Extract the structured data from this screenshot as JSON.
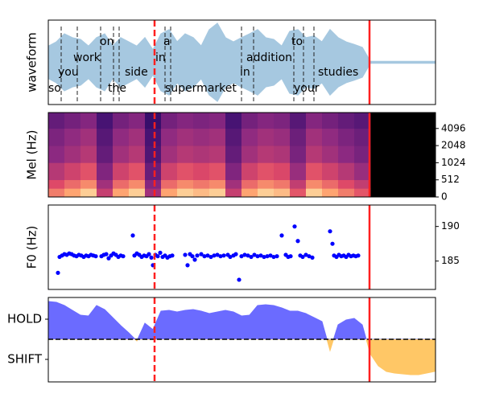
{
  "markers": [
    {
      "x": 1.32,
      "color": "#ff2020",
      "style": "dashed"
    },
    {
      "x": 3.99,
      "color": "#ff2020",
      "style": "solid"
    }
  ],
  "chart_data": [
    {
      "type": "waveform",
      "ylabel": "waveform",
      "xlim": [
        0,
        4.81
      ],
      "ylim": [
        -1,
        1
      ],
      "color": "#a6c8e0",
      "x": [
        0,
        0.1,
        0.2,
        0.3,
        0.4,
        0.5,
        0.6,
        0.7,
        0.8,
        0.9,
        1.0,
        1.1,
        1.2,
        1.3,
        1.4,
        1.5,
        1.6,
        1.7,
        1.8,
        1.9,
        2.0,
        2.1,
        2.2,
        2.3,
        2.4,
        2.5,
        2.6,
        2.7,
        2.8,
        2.9,
        3.0,
        3.1,
        3.2,
        3.3,
        3.4,
        3.5,
        3.6,
        3.7,
        3.8,
        3.9,
        4.0,
        4.1,
        4.2,
        4.3,
        4.4,
        4.5,
        4.6,
        4.7,
        4.8
      ],
      "values": [
        0.38,
        0.48,
        0.67,
        0.58,
        0.54,
        0.38,
        0.58,
        0.67,
        0.38,
        0.58,
        0.48,
        0.38,
        0.58,
        0.29,
        0.67,
        0.77,
        0.48,
        0.67,
        0.58,
        0.38,
        0.77,
        0.92,
        0.58,
        0.48,
        0.58,
        0.67,
        0.77,
        0.58,
        0.54,
        0.38,
        0.73,
        0.77,
        0.58,
        0.62,
        0.48,
        0.77,
        0.58,
        0.48,
        0.42,
        0.35,
        0.02,
        0.02,
        0.02,
        0.02,
        0.02,
        0.02,
        0.02,
        0.02,
        0.02
      ],
      "words": [
        {
          "text": "so",
          "start": 0.0
        },
        {
          "text": "you",
          "start": 0.12
        },
        {
          "text": "work",
          "start": 0.31
        },
        {
          "text": "on",
          "start": 0.64
        },
        {
          "text": "the",
          "start": 0.74
        },
        {
          "text": "side",
          "start": 0.95
        },
        {
          "text": "in",
          "start": 1.33
        },
        {
          "text": "a",
          "start": 1.43
        },
        {
          "text": "supermarket",
          "start": 1.45
        },
        {
          "text": "in",
          "start": 2.38
        },
        {
          "text": "addition",
          "start": 2.46
        },
        {
          "text": "to",
          "start": 3.02
        },
        {
          "text": "your",
          "start": 3.05
        },
        {
          "text": "studies",
          "start": 3.35
        }
      ],
      "boundaries": [
        0.16,
        0.36,
        0.65,
        0.81,
        0.88,
        1.45,
        1.52,
        2.4,
        2.55,
        3.05,
        3.17,
        3.3
      ]
    },
    {
      "type": "heatmap",
      "ylabel": "Mel (Hz)",
      "xlim": [
        0,
        4.81
      ],
      "ylim": [
        0,
        7800
      ],
      "yscale": "symlog",
      "linthresh": 1024,
      "yticks": [
        0,
        512,
        1024,
        2048,
        4096
      ],
      "background": "#000000",
      "colormap": [
        "#000004",
        "#3b0f70",
        "#8c2981",
        "#de4968",
        "#fe9f6d",
        "#fcfdbf"
      ],
      "xbins": [
        0,
        0.2,
        0.4,
        0.6,
        0.8,
        1.0,
        1.2,
        1.4,
        1.6,
        1.8,
        2.0,
        2.2,
        2.4,
        2.6,
        2.8,
        3.0,
        3.2,
        3.4,
        3.6,
        3.8,
        4.0
      ],
      "ybins": [
        0,
        256,
        512,
        1024,
        2048,
        4096,
        7800
      ],
      "z": [
        [
          0.72,
          0.81,
          0.9,
          0.54,
          0.81,
          0.9,
          0.45,
          0.81,
          0.9,
          0.86,
          0.9,
          0.54,
          0.81,
          0.9,
          0.86,
          0.63,
          0.9,
          0.81,
          0.72,
          0.63
        ],
        [
          0.6,
          0.68,
          0.75,
          0.45,
          0.68,
          0.75,
          0.38,
          0.68,
          0.75,
          0.71,
          0.75,
          0.45,
          0.68,
          0.75,
          0.71,
          0.53,
          0.75,
          0.68,
          0.6,
          0.53
        ],
        [
          0.5,
          0.56,
          0.62,
          0.37,
          0.56,
          0.62,
          0.31,
          0.56,
          0.62,
          0.59,
          0.62,
          0.37,
          0.56,
          0.62,
          0.59,
          0.43,
          0.62,
          0.56,
          0.5,
          0.43
        ],
        [
          0.4,
          0.45,
          0.5,
          0.3,
          0.45,
          0.5,
          0.25,
          0.45,
          0.5,
          0.48,
          0.5,
          0.3,
          0.45,
          0.5,
          0.48,
          0.35,
          0.5,
          0.45,
          0.4,
          0.35
        ],
        [
          0.36,
          0.41,
          0.45,
          0.27,
          0.41,
          0.45,
          0.23,
          0.41,
          0.45,
          0.43,
          0.45,
          0.27,
          0.41,
          0.45,
          0.43,
          0.32,
          0.45,
          0.41,
          0.36,
          0.32
        ],
        [
          0.3,
          0.34,
          0.38,
          0.23,
          0.34,
          0.38,
          0.19,
          0.34,
          0.38,
          0.36,
          0.38,
          0.23,
          0.34,
          0.38,
          0.36,
          0.27,
          0.38,
          0.34,
          0.3,
          0.27
        ]
      ]
    },
    {
      "type": "scatter",
      "ylabel": "F0 (Hz)",
      "xlim": [
        0,
        4.81
      ],
      "ylim": [
        180.9,
        193.1
      ],
      "yticks": [
        185,
        190
      ],
      "color": "#0000ff",
      "x": [
        0.12,
        0.14,
        0.17,
        0.2,
        0.23,
        0.26,
        0.29,
        0.32,
        0.35,
        0.38,
        0.41,
        0.44,
        0.47,
        0.5,
        0.53,
        0.56,
        0.59,
        0.66,
        0.69,
        0.72,
        0.75,
        0.78,
        0.81,
        0.84,
        0.87,
        0.9,
        0.93,
        1.05,
        1.07,
        1.1,
        1.13,
        1.16,
        1.19,
        1.22,
        1.25,
        1.28,
        1.3,
        1.33,
        1.36,
        1.39,
        1.42,
        1.45,
        1.48,
        1.51,
        1.54,
        1.7,
        1.73,
        1.76,
        1.79,
        1.82,
        1.85,
        1.9,
        1.94,
        1.98,
        2.02,
        2.06,
        2.1,
        2.14,
        2.18,
        2.23,
        2.26,
        2.3,
        2.33,
        2.37,
        2.4,
        2.44,
        2.48,
        2.52,
        2.56,
        2.6,
        2.64,
        2.68,
        2.72,
        2.76,
        2.8,
        2.84,
        2.9,
        2.95,
        2.98,
        3.01,
        3.06,
        3.1,
        3.13,
        3.16,
        3.2,
        3.24,
        3.28,
        3.5,
        3.53,
        3.55,
        3.58,
        3.61,
        3.64,
        3.67,
        3.7,
        3.73,
        3.76,
        3.79,
        3.82,
        3.85
      ],
      "values": [
        183.3,
        185.6,
        185.8,
        186.0,
        185.9,
        186.1,
        186.0,
        185.8,
        185.7,
        185.9,
        185.8,
        185.6,
        185.8,
        185.7,
        185.9,
        185.8,
        185.7,
        185.7,
        185.9,
        186.0,
        185.4,
        185.8,
        186.1,
        185.9,
        185.6,
        185.8,
        185.7,
        188.7,
        185.8,
        186.1,
        185.9,
        185.6,
        185.8,
        185.7,
        186.0,
        185.5,
        184.4,
        185.9,
        185.7,
        186.2,
        185.6,
        185.8,
        185.5,
        185.7,
        185.8,
        185.9,
        184.4,
        186.0,
        185.7,
        185.2,
        185.8,
        186.0,
        185.7,
        185.8,
        185.6,
        185.8,
        185.9,
        185.7,
        185.8,
        185.9,
        185.6,
        185.8,
        186.0,
        182.3,
        185.7,
        185.9,
        185.8,
        185.6,
        185.9,
        185.7,
        185.8,
        185.6,
        185.7,
        185.8,
        185.6,
        185.7,
        188.7,
        185.9,
        185.6,
        185.7,
        190.0,
        187.9,
        185.8,
        185.6,
        185.9,
        185.7,
        185.5,
        189.3,
        187.5,
        185.8,
        185.6,
        185.9,
        185.7,
        185.8,
        185.6,
        185.9,
        185.7,
        185.8,
        185.7,
        185.8
      ]
    },
    {
      "type": "area",
      "xlim": [
        0,
        4.81
      ],
      "ylim": [
        -1.06,
        1.04
      ],
      "zero_line": 0,
      "yticks": [
        {
          "value": 0.5,
          "label": "HOLD"
        },
        {
          "value": -0.5,
          "label": "SHIFT"
        }
      ],
      "colors": {
        "positive": "#6b6bff",
        "negative": "#ffc766"
      },
      "x": [
        0,
        0.1,
        0.2,
        0.3,
        0.4,
        0.5,
        0.6,
        0.7,
        0.8,
        0.9,
        1.0,
        1.1,
        1.2,
        1.3,
        1.4,
        1.5,
        1.6,
        1.7,
        1.8,
        1.9,
        2.0,
        2.1,
        2.2,
        2.3,
        2.4,
        2.5,
        2.6,
        2.7,
        2.8,
        2.9,
        3.0,
        3.1,
        3.2,
        3.3,
        3.4,
        3.5,
        3.6,
        3.7,
        3.8,
        3.9,
        4.0,
        4.1,
        4.2,
        4.3,
        4.4,
        4.5,
        4.6,
        4.7,
        4.8
      ],
      "values": [
        0.94,
        0.92,
        0.84,
        0.72,
        0.6,
        0.58,
        0.84,
        0.74,
        0.54,
        0.34,
        0.16,
        -0.04,
        0.4,
        0.24,
        0.7,
        0.72,
        0.68,
        0.72,
        0.74,
        0.7,
        0.64,
        0.68,
        0.72,
        0.68,
        0.58,
        0.6,
        0.84,
        0.86,
        0.84,
        0.78,
        0.7,
        0.7,
        0.64,
        0.54,
        0.44,
        -0.28,
        0.36,
        0.48,
        0.52,
        0.36,
        -0.36,
        -0.66,
        -0.8,
        -0.84,
        -0.86,
        -0.88,
        -0.88,
        -0.84,
        -0.8
      ]
    }
  ]
}
